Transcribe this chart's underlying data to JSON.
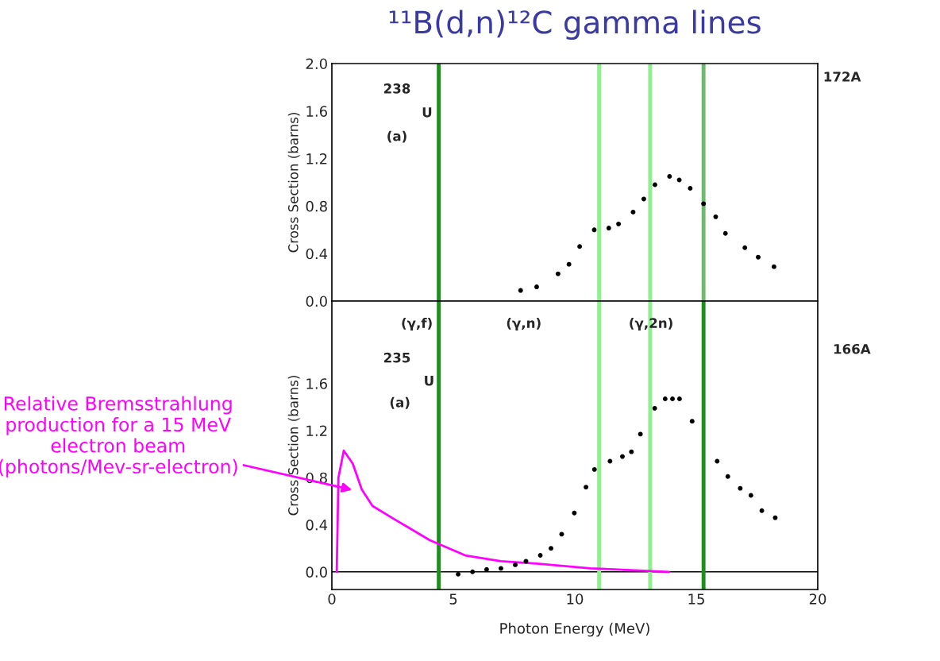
{
  "chart_data": [
    {
      "type": "scatter",
      "title": "¹¹B(d,n)¹²C gamma lines",
      "ylabel": "Cross Section (barns)",
      "x": [
        7.77,
        8.43,
        9.31,
        9.76,
        10.2,
        10.8,
        11.4,
        11.8,
        12.4,
        12.84,
        13.3,
        13.9,
        14.3,
        14.75,
        15.3,
        15.8,
        16.2,
        17.0,
        17.55,
        18.2
      ],
      "series": [
        {
          "color": "#000000",
          "values": [
            0.09,
            0.12,
            0.23,
            0.31,
            0.46,
            0.6,
            0.615,
            0.65,
            0.75,
            0.86,
            0.98,
            1.05,
            1.02,
            0.95,
            0.82,
            0.71,
            0.57,
            0.45,
            0.37,
            0.29
          ]
        }
      ],
      "xlim": [
        0,
        20
      ],
      "ylim": [
        0,
        2.0
      ],
      "yticks": [
        {
          "value": 0,
          "label": "0.0"
        },
        {
          "value": 0.4,
          "label": "0.4"
        },
        {
          "value": 0.8,
          "label": "0.8"
        },
        {
          "value": 1.2,
          "label": "1.2"
        },
        {
          "value": 1.6,
          "label": "1.6"
        },
        {
          "value": 2.0,
          "label": "2.0"
        }
      ],
      "tick_labels": "y",
      "marker": "circle",
      "legend": false,
      "ref_lines": [
        {
          "axis": "x",
          "value": 4.4,
          "color": "#1e8c1e"
        },
        {
          "axis": "x",
          "value": 11.0,
          "color": "#90f090"
        },
        {
          "axis": "x",
          "value": 13.1,
          "color": "#90f090"
        },
        {
          "axis": "x",
          "value": 15.3,
          "color": "#70b870"
        }
      ],
      "annotations": [
        "238",
        "U",
        "(a)",
        "172A"
      ]
    },
    {
      "type": "scatter",
      "ylabel": "Cross Section (barns)",
      "xlabel": "Photon Energy (MeV)",
      "series": [
        {
          "color": "#000000",
          "marker": "circle",
          "x": [
            5.2,
            5.79,
            6.37,
            6.96,
            7.55,
            7.99,
            8.58,
            9.02,
            9.46,
            9.98,
            10.46,
            10.81,
            11.45,
            11.96,
            12.33,
            12.7,
            13.29,
            13.72,
            14.02,
            14.31,
            14.83,
            15.86,
            16.3,
            16.81,
            17.25,
            17.7,
            18.25
          ],
          "values": [
            -0.02,
            0.0,
            0.02,
            0.03,
            0.06,
            0.09,
            0.14,
            0.2,
            0.32,
            0.5,
            0.72,
            0.87,
            0.94,
            0.98,
            1.02,
            1.17,
            1.39,
            1.47,
            1.47,
            1.47,
            1.28,
            0.94,
            0.81,
            0.71,
            0.65,
            0.52,
            0.46
          ]
        },
        {
          "type": "line",
          "color": "#ff00ff",
          "x": [
            0.2,
            0.27,
            0.49,
            0.86,
            1.23,
            1.67,
            2.55,
            4.02,
            5.49,
            6.96,
            8.43,
            10.64,
            12.84,
            13.87
          ],
          "values": [
            0.0,
            0.8,
            1.03,
            0.92,
            0.7,
            0.56,
            0.45,
            0.27,
            0.14,
            0.09,
            0.07,
            0.03,
            0.01,
            0.0
          ]
        }
      ],
      "xlim": [
        0,
        20
      ],
      "ylim": [
        -0.15,
        2.3
      ],
      "xticks": [
        0,
        5,
        10,
        15,
        20
      ],
      "yticks": [
        {
          "value": 0,
          "label": "0.0"
        },
        {
          "value": 0.4,
          "label": "0.4"
        },
        {
          "value": 0.8,
          "label": "0.8"
        },
        {
          "value": 1.2,
          "label": "1.2"
        },
        {
          "value": 1.6,
          "label": "1.6"
        }
      ],
      "legend": false,
      "ref_lines": [
        {
          "axis": "y",
          "value": 0,
          "color": "#000000"
        },
        {
          "axis": "x",
          "value": 4.4,
          "color": "#1e8c1e"
        },
        {
          "axis": "x",
          "value": 11.0,
          "color": "#90f090"
        },
        {
          "axis": "x",
          "value": 13.1,
          "color": "#90f090"
        },
        {
          "axis": "x",
          "value": 15.3,
          "color": "#1e8c1e"
        }
      ],
      "annotations": [
        "(γ,f)",
        "(γ,n)",
        "(γ,2n)",
        "235",
        "U",
        "(a)",
        "166A",
        "Relative Bremsstrahlung production for a 15 MeV electron beam (photons/Mev-sr-electron)"
      ]
    }
  ]
}
